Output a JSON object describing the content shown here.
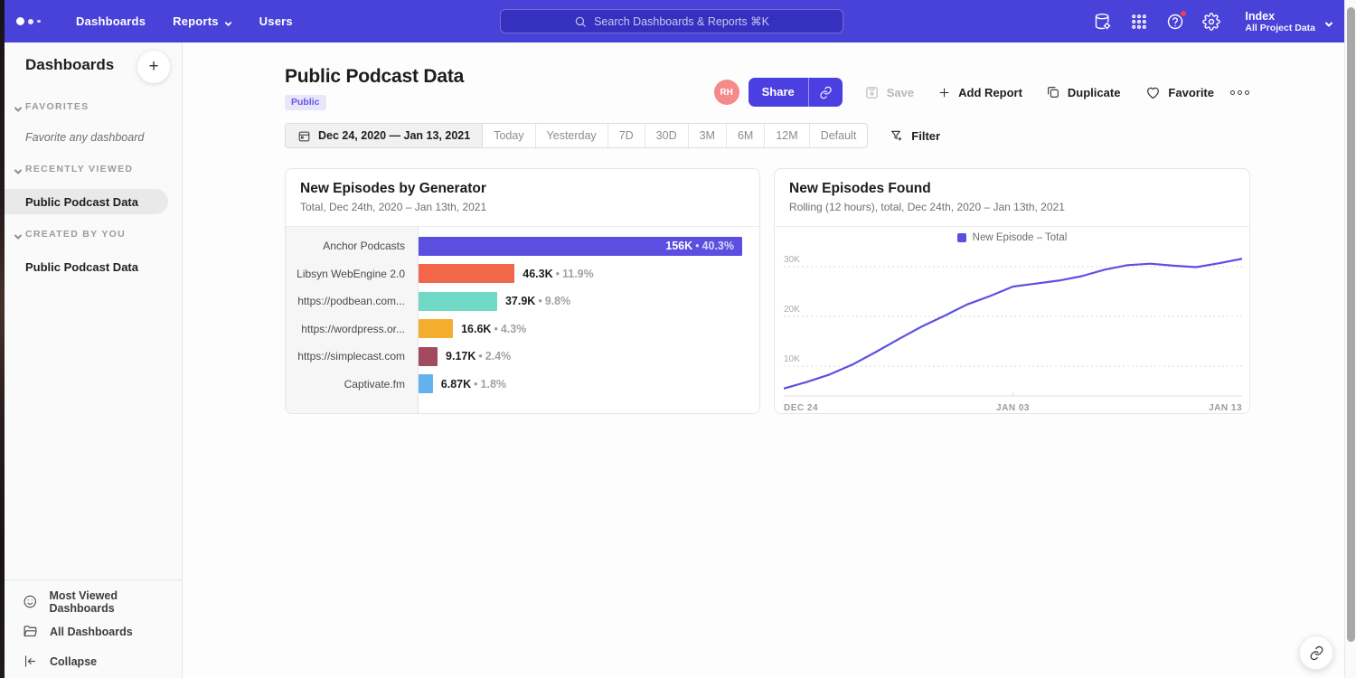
{
  "nav": {
    "items": [
      {
        "label": "Dashboards"
      },
      {
        "label": "Reports"
      },
      {
        "label": "Users"
      }
    ],
    "search_placeholder": "Search Dashboards & Reports ⌘K",
    "workspace": {
      "name": "Index",
      "scope": "All Project Data"
    }
  },
  "sidebar": {
    "title": "Dashboards",
    "sections": [
      {
        "label": "FAVORITES",
        "empty_text": "Favorite any dashboard"
      },
      {
        "label": "RECENTLY VIEWED",
        "item": "Public Podcast Data"
      },
      {
        "label": "CREATED BY YOU",
        "item": "Public Podcast Data"
      }
    ],
    "footer": {
      "most_viewed": "Most Viewed Dashboards",
      "all_dashboards": "All Dashboards",
      "collapse": "Collapse"
    }
  },
  "header": {
    "title": "Public Podcast Data",
    "badge": "Public",
    "avatar_initials": "RH",
    "share_label": "Share",
    "save_label": "Save",
    "add_report_label": "Add Report",
    "duplicate_label": "Duplicate",
    "favorite_label": "Favorite"
  },
  "toolbar": {
    "date_range": "Dec 24, 2020 — Jan 13, 2021",
    "presets": [
      "Today",
      "Yesterday",
      "7D",
      "30D",
      "3M",
      "6M",
      "12M",
      "Default"
    ],
    "filter_label": "Filter"
  },
  "chart_data": [
    {
      "type": "bar",
      "orientation": "horizontal",
      "title": "New Episodes by Generator",
      "subtitle": "Total, Dec 24th, 2020 – Jan 13th, 2021",
      "categories": [
        "Anchor Podcasts",
        "Libsyn WebEngine 2.0",
        "https://podbean.com...",
        "https://wordpress.or...",
        "https://simplecast.com",
        "Captivate.fm"
      ],
      "values": [
        156000,
        46300,
        37900,
        16600,
        9170,
        6870
      ],
      "value_labels": [
        "156K",
        "46.3K",
        "37.9K",
        "16.6K",
        "9.17K",
        "6.87K"
      ],
      "percent_labels": [
        "40.3%",
        "11.9%",
        "9.8%",
        "4.3%",
        "2.4%",
        "1.8%"
      ],
      "colors": [
        "#5b4ee0",
        "#f2664a",
        "#70d9c5",
        "#f3ae2e",
        "#a24a5e",
        "#62b2ee"
      ]
    },
    {
      "type": "line",
      "title": "New Episodes Found",
      "subtitle": "Rolling (12 hours), total, Dec 24th, 2020 – Jan 13th, 2021",
      "legend": [
        {
          "label": "New Episode – Total",
          "color": "#5b4ee0"
        }
      ],
      "line_color": "#5c50e2",
      "x": [
        "Dec 24",
        "Dec 25",
        "Dec 26",
        "Dec 27",
        "Dec 28",
        "Dec 29",
        "Dec 30",
        "Dec 31",
        "Jan 1",
        "Jan 2",
        "Jan 3",
        "Jan 4",
        "Jan 5",
        "Jan 6",
        "Jan 7",
        "Jan 8",
        "Jan 9",
        "Jan 10",
        "Jan 11",
        "Jan 12",
        "Jan 13"
      ],
      "values": [
        5500,
        6800,
        8300,
        10300,
        12800,
        15400,
        17900,
        20100,
        22400,
        24100,
        26000,
        26600,
        27200,
        28100,
        29400,
        30300,
        30600,
        30200,
        29900,
        30700,
        31600
      ],
      "y_ticks": [
        {
          "label": "10K",
          "value": 10000
        },
        {
          "label": "20K",
          "value": 20000
        },
        {
          "label": "30K",
          "value": 30000
        }
      ],
      "x_ticks": [
        "DEC 24",
        "JAN 03",
        "JAN 13"
      ],
      "ylim": [
        4000,
        33000
      ],
      "grid": true,
      "legend_position": "top-center"
    }
  ]
}
